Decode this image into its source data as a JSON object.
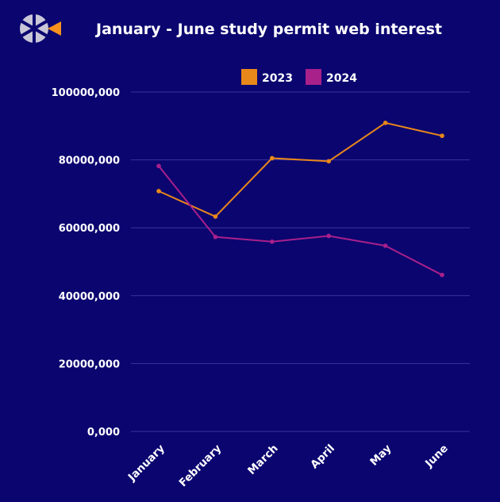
{
  "chart_data": {
    "type": "line",
    "title": "January - June study permit web interest",
    "categories": [
      "January",
      "February",
      "March",
      "April",
      "May",
      "June"
    ],
    "y_ticks": [
      "0,000",
      "20000,000",
      "40000,000",
      "60000,000",
      "80000,000",
      "100000,000"
    ],
    "ylim": [
      0,
      100000000
    ],
    "legend_position": "top-center",
    "grid": true,
    "series": [
      {
        "name": "2023",
        "color": "#e9881a",
        "values": [
          70800000,
          63300000,
          80500000,
          79600000,
          90900000,
          87100000
        ]
      },
      {
        "name": "2024",
        "color": "#a8208a",
        "values": [
          78200000,
          57300000,
          55900000,
          57600000,
          54700000,
          46100000
        ]
      }
    ]
  },
  "logo": {
    "icon": "aperture-logo-icon",
    "accent": "#f7921e",
    "base": "#c9c6d8"
  }
}
